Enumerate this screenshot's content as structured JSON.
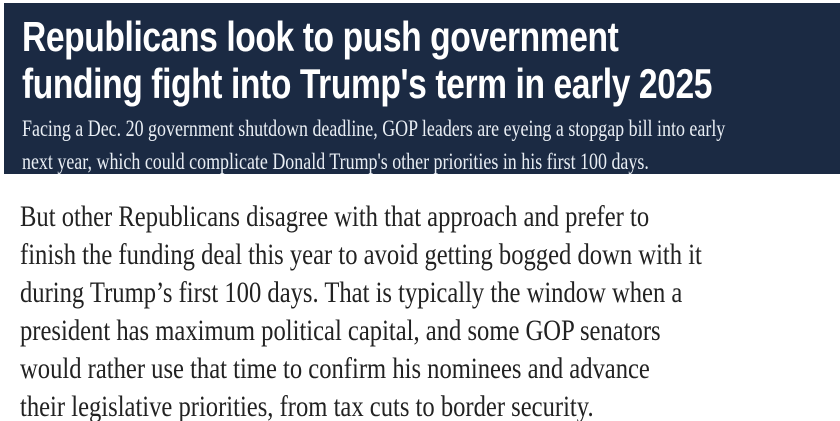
{
  "theme": {
    "page_bg": "#ffffff",
    "header_bg": "#1b2a43",
    "headline_color": "#ffffff",
    "dek_color": "#e9eef4",
    "body_text_color": "#222222"
  },
  "article": {
    "headline": "Republicans look to push government funding fight into Trump's term in early 2025",
    "headline_lines": [
      "Republicans look to push government",
      "funding fight into Trump's term in early 2025"
    ],
    "dek": "Facing a Dec. 20 government shutdown deadline, GOP leaders are eyeing a stopgap bill into early next year, which could complicate Donald Trump's other priorities in his first 100 days.",
    "dek_lines": [
      "Facing a Dec. 20 government shutdown deadline, GOP leaders are eyeing a stopgap bill into early",
      "next year, which could complicate Donald Trump's other priorities in his first 100 days."
    ],
    "body": "But other Republicans disagree with that approach and prefer to finish the funding deal this year to avoid getting bogged down with it during Trump’s first 100 days. That is typically the window when a president has maximum political capital, and some GOP senators would rather use that time to confirm his nominees and advance their legislative priorities, from tax cuts to border security.",
    "body_lines": [
      "But other Republicans disagree with that approach and prefer to",
      "finish the funding deal this year to avoid getting bogged down with it",
      "during Trump’s first 100 days. That is typically the window when a",
      "president has maximum political capital, and some GOP senators",
      "would rather use that time to confirm his nominees and advance",
      "their legislative priorities, from tax cuts to border security."
    ]
  }
}
